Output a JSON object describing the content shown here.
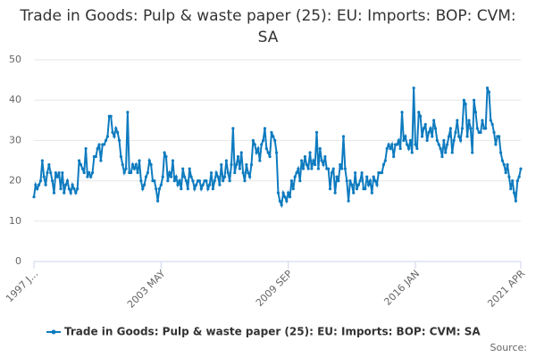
{
  "chart_data": {
    "type": "line",
    "title": "Trade in Goods: Pulp & waste paper (25): EU: Imports: BOP: CVM: SA",
    "source": "Source:",
    "categories": [
      "1997 J...",
      null,
      null,
      null,
      null,
      null,
      null,
      null,
      null,
      null,
      null,
      null,
      null,
      null,
      null,
      null,
      null,
      null,
      null,
      null,
      null,
      null,
      null,
      null,
      null,
      null,
      null,
      null,
      null,
      null,
      null,
      null,
      null,
      null,
      null,
      null,
      null,
      null,
      null,
      null,
      null,
      null,
      null,
      null,
      null,
      null,
      null,
      null,
      null,
      null,
      null,
      null,
      null,
      null,
      null,
      null,
      null,
      null,
      null,
      null,
      null,
      null,
      null,
      null,
      null,
      null,
      null,
      null,
      null,
      null,
      null,
      null,
      null,
      null,
      null,
      null,
      "2003 MAY",
      null,
      null,
      null,
      null,
      null,
      null,
      null,
      null,
      null,
      null,
      null,
      null,
      null,
      null,
      null,
      null,
      null,
      null,
      null,
      null,
      null,
      null,
      null,
      null,
      null,
      null,
      null,
      null,
      null,
      null,
      null,
      null,
      null,
      null,
      null,
      null,
      null,
      null,
      null,
      null,
      null,
      null,
      null,
      null,
      null,
      null,
      null,
      null,
      null,
      null,
      null,
      null,
      null,
      null,
      null,
      null,
      null,
      null,
      null,
      null,
      null,
      null,
      null,
      null,
      null,
      null,
      null,
      null,
      null,
      null,
      null,
      null,
      null,
      null,
      null,
      "2009 SEP",
      null,
      null,
      null,
      null,
      null,
      null,
      null,
      null,
      null,
      null,
      null,
      null,
      null,
      null,
      null,
      null,
      null,
      null,
      null,
      null,
      null,
      null,
      null,
      null,
      null,
      null,
      null,
      null,
      null,
      null,
      null,
      null,
      null,
      null,
      null,
      null,
      null,
      null,
      null,
      null,
      null,
      null,
      null,
      null,
      null,
      null,
      null,
      null,
      null,
      null,
      null,
      null,
      null,
      null,
      null,
      null,
      null,
      null,
      null,
      null,
      null,
      null,
      null,
      null,
      null,
      null,
      null,
      null,
      null,
      null,
      null,
      null,
      null,
      null,
      null,
      "2016 JAN",
      null,
      null,
      null,
      null,
      null,
      null,
      null,
      null,
      null,
      null,
      null,
      null,
      null,
      null,
      null,
      null,
      null,
      null,
      null,
      null,
      null,
      null,
      null,
      null,
      null,
      null,
      null,
      null,
      null,
      null,
      null,
      null,
      null,
      null,
      null,
      null,
      null,
      null,
      null,
      null,
      null,
      null,
      null,
      null,
      null,
      null,
      null,
      null,
      null,
      null,
      null,
      null,
      null,
      null,
      null,
      null,
      null,
      null,
      null,
      null,
      null,
      null,
      "2021 APR"
    ],
    "series": [
      {
        "name": "Trade in Goods: Pulp & waste paper (25): EU: Imports: BOP: CVM: SA",
        "color": "#0e7bbf",
        "values": [
          16,
          19,
          18,
          19,
          20,
          25,
          21,
          19,
          22,
          24,
          22,
          20,
          17,
          22,
          21,
          22,
          18,
          22,
          17,
          19,
          20,
          18,
          17,
          19,
          18,
          17,
          18,
          25,
          24,
          23,
          22,
          28,
          21,
          22,
          21,
          22,
          26,
          26,
          28,
          29,
          25,
          29,
          29,
          30,
          31,
          36,
          36,
          32,
          31,
          33,
          32,
          30,
          26,
          24,
          22,
          23,
          37,
          22,
          22,
          24,
          23,
          24,
          22,
          25,
          20,
          18,
          19,
          21,
          22,
          25,
          24,
          20,
          20,
          18,
          15,
          18,
          19,
          21,
          27,
          26,
          20,
          22,
          21,
          25,
          20,
          21,
          19,
          20,
          18,
          23,
          21,
          20,
          18,
          23,
          21,
          20,
          18,
          19,
          20,
          20,
          18,
          19,
          20,
          20,
          18,
          19,
          22,
          18,
          20,
          22,
          21,
          19,
          24,
          20,
          21,
          25,
          22,
          20,
          24,
          33,
          22,
          24,
          26,
          23,
          27,
          22,
          20,
          24,
          22,
          21,
          24,
          30,
          29,
          27,
          28,
          25,
          29,
          30,
          33,
          28,
          27,
          26,
          32,
          31,
          30,
          27,
          17,
          15,
          14,
          17,
          16,
          15,
          17,
          16,
          20,
          18,
          21,
          22,
          23,
          20,
          25,
          23,
          26,
          24,
          23,
          27,
          23,
          25,
          24,
          32,
          23,
          28,
          25,
          24,
          26,
          23,
          23,
          18,
          22,
          23,
          17,
          21,
          20,
          24,
          23,
          31,
          23,
          20,
          15,
          20,
          19,
          17,
          22,
          18,
          19,
          20,
          22,
          18,
          18,
          21,
          19,
          20,
          17,
          21,
          20,
          19,
          22,
          22,
          22,
          24,
          25,
          28,
          29,
          28,
          29,
          26,
          29,
          29,
          30,
          28,
          37,
          30,
          31,
          29,
          28,
          30,
          27,
          43,
          29,
          28,
          37,
          36,
          31,
          33,
          34,
          30,
          32,
          33,
          31,
          35,
          33,
          30,
          29,
          28,
          26,
          30,
          27,
          29,
          31,
          33,
          27,
          30,
          32,
          35,
          31,
          30,
          33,
          40,
          39,
          31,
          35,
          33,
          27,
          40,
          37,
          33,
          32,
          32,
          35,
          33,
          33,
          43,
          42,
          35,
          34,
          32,
          29,
          31,
          31,
          27,
          25,
          24,
          22,
          24,
          21,
          18,
          20,
          17,
          15,
          20,
          21,
          23
        ]
      }
    ],
    "ylim": [
      0,
      50
    ],
    "yticks": [
      0,
      10,
      20,
      30,
      40,
      50
    ],
    "grid": true,
    "legend": "bottom"
  }
}
